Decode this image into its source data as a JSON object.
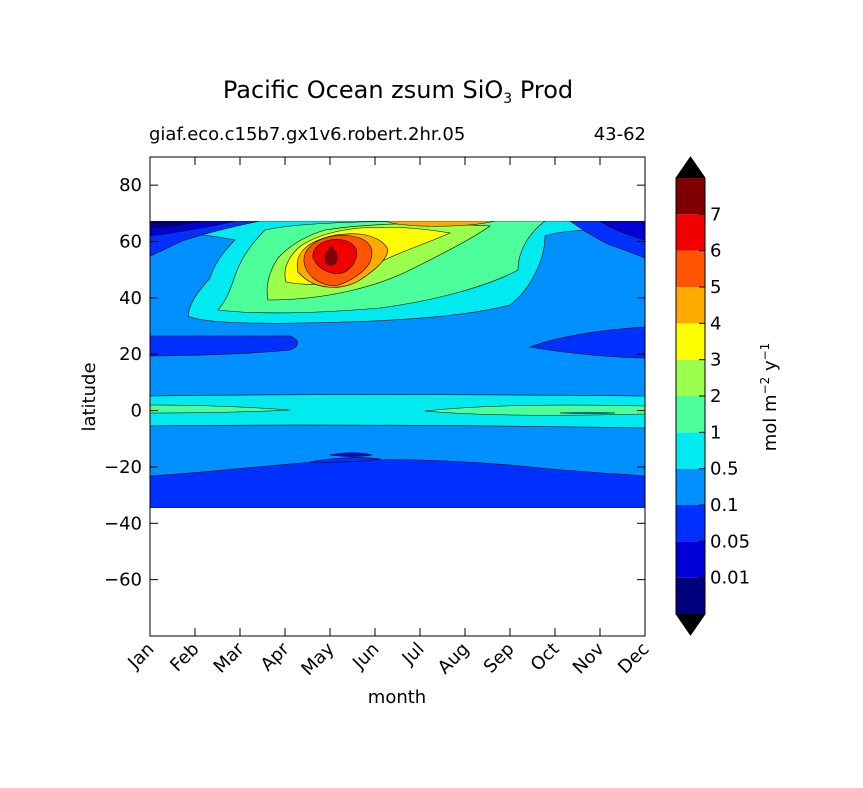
{
  "chart_data": {
    "type": "heatmap",
    "title_main": "Pacific Ocean zsum SiO",
    "title_sub": "3",
    "title_tail": " Prod",
    "subtitle_left": "giaf.eco.c15b7.gx1v6.robert.2hr.05",
    "subtitle_right": "43-62",
    "xlabel": "month",
    "ylabel": "latitude",
    "x_ticks": [
      "Jan",
      "Feb",
      "Mar",
      "Apr",
      "May",
      "Jun",
      "Jul",
      "Aug",
      "Sep",
      "Oct",
      "Nov",
      "Dec"
    ],
    "y_ticks": [
      80,
      60,
      40,
      20,
      0,
      -20,
      -40,
      -60
    ],
    "y_tick_labels": [
      "80",
      "60",
      "40",
      "20",
      "0",
      "−20",
      "−40",
      "−60"
    ],
    "ylim": [
      -80,
      90
    ],
    "data_lat_range": [
      -34,
      67
    ],
    "colorbar": {
      "label": "mol m⁻² y⁻¹",
      "levels": [
        "0.01",
        "0.05",
        "0.1",
        "0.5",
        "1",
        "2",
        "3",
        "4",
        "5",
        "6",
        "7"
      ],
      "colors": [
        "#00007f",
        "#0000d5",
        "#0030ff",
        "#0090ff",
        "#00eaf0",
        "#4dff9a",
        "#9aff4d",
        "#ffff00",
        "#ffaa00",
        "#ff5500",
        "#f00000",
        "#7f0000"
      ],
      "extend": "both",
      "under_color": "#000000",
      "over_color": "#000000"
    },
    "regions": [
      {
        "level_range": "0.1-0.5",
        "lat": [
          -34,
          67
        ],
        "months": "Jan-Dec",
        "note": "background"
      },
      {
        "level_range": "0.01-0.05",
        "lat": [
          -34,
          -22
        ],
        "months": "Jan-Dec"
      },
      {
        "level_range": "0.01-0.05",
        "lat": [
          19,
          27
        ],
        "months": "Jan-Apr, Oct-Dec"
      },
      {
        "level_range": "0.5-1",
        "lat": [
          -5,
          3
        ],
        "months": "Jan-Dec"
      },
      {
        "level_range": "1-2",
        "lat": [
          -1,
          1
        ],
        "months": "Jan-Mar, Aug-Dec"
      },
      {
        "level_range": "0.5-1",
        "lat": [
          32,
          67
        ],
        "months": "Jan-Oct"
      },
      {
        "level_range": "1-2",
        "lat": [
          34,
          64
        ],
        "months": "Mar-Aug"
      },
      {
        "level_range": "2-3",
        "lat": [
          39,
          62
        ],
        "months": "Apr-Jul"
      },
      {
        "level_range": "3-4",
        "lat": [
          44,
          62
        ],
        "months": "Apr-Jun"
      },
      {
        "level_range": "4-5",
        "lat": [
          46,
          63
        ],
        "months": "May-Jul"
      },
      {
        "level_range": "5-6",
        "lat": [
          48,
          61
        ],
        "months": "May-Jun"
      },
      {
        "level_range": "6-7",
        "lat": [
          50,
          59
        ],
        "months": "May"
      },
      {
        "level_range": "7+",
        "lat": [
          52,
          56
        ],
        "months": "May"
      },
      {
        "level_range": "0.05-0.1",
        "lat": [
          55,
          67
        ],
        "months": "Jan-Feb, Nov-Dec"
      },
      {
        "level_range": "0.01-0.05",
        "lat": [
          62,
          67
        ],
        "months": "Jan, Dec"
      }
    ]
  }
}
